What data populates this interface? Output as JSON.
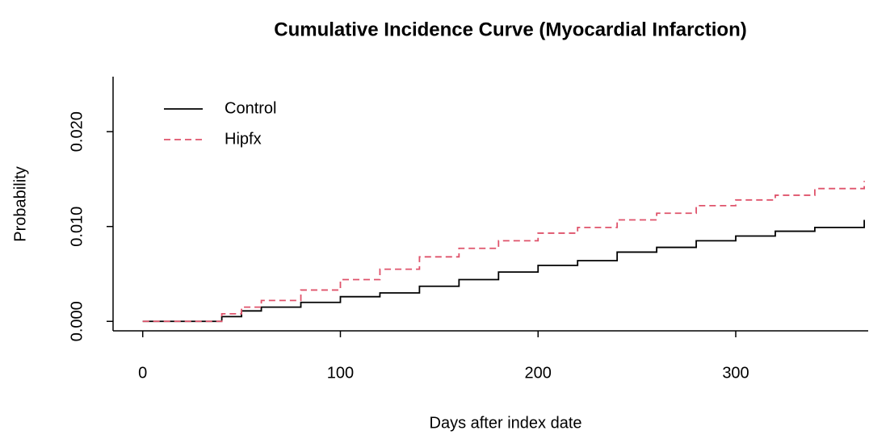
{
  "chart_data": {
    "type": "step",
    "title": "Cumulative Incidence Curve (Myocardial Infarction)",
    "xlabel": "Days after index date",
    "ylabel": "Probability",
    "x": [
      0,
      30,
      40,
      50,
      60,
      80,
      100,
      120,
      140,
      160,
      180,
      200,
      220,
      240,
      260,
      280,
      300,
      320,
      340,
      365
    ],
    "series": [
      {
        "name": "Control",
        "color": "#000000",
        "dash": false,
        "values": [
          0,
          0,
          0.0005,
          0.0011,
          0.0015,
          0.002,
          0.0026,
          0.003,
          0.0037,
          0.0044,
          0.0052,
          0.0059,
          0.0064,
          0.0073,
          0.0078,
          0.0085,
          0.009,
          0.0095,
          0.0099,
          0.0107
        ]
      },
      {
        "name": "Hipfx",
        "color": "#DF536B",
        "dash": true,
        "values": [
          0,
          0,
          0.0008,
          0.0015,
          0.0022,
          0.0033,
          0.0044,
          0.0055,
          0.0068,
          0.0077,
          0.0085,
          0.0093,
          0.0099,
          0.0107,
          0.0114,
          0.0122,
          0.0128,
          0.0133,
          0.014,
          0.0148
        ]
      }
    ],
    "xlim": [
      -15,
      367
    ],
    "ylim": [
      -0.001,
      0.0258
    ],
    "xticks": [
      0,
      100,
      200,
      300
    ],
    "yticks": [
      {
        "value": 0,
        "label": "0.000"
      },
      {
        "value": 0.01,
        "label": "0.010"
      },
      {
        "value": 0.02,
        "label": "0.020"
      }
    ],
    "legend": "top-left"
  }
}
